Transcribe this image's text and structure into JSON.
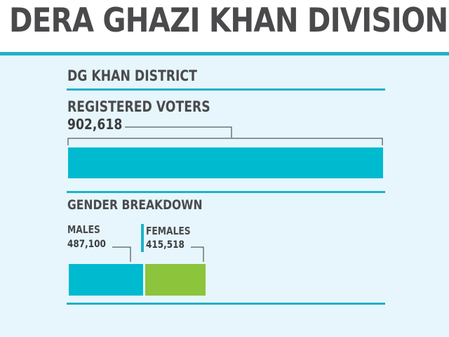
{
  "title": "DERA GHAZI KHAN DIVISION",
  "district": "DG KHAN DISTRICT",
  "registered": {
    "label": "REGISTERED VOTERS",
    "value_text": "902,618",
    "value": 902618
  },
  "gender": {
    "heading": "GENDER BREAKDOWN",
    "males": {
      "label": "MALES",
      "value_text": "487,100",
      "value": 487100
    },
    "females": {
      "label": "FEMALES",
      "value_text": "415,518",
      "value": 415518
    }
  },
  "colors": {
    "accent": "#1fb1c8",
    "registered_bar": "#00bad0",
    "males_bar": "#00bad0",
    "females_bar": "#8cc43c",
    "panel_bg": "#e6f6fc",
    "text": "#4a4a4d"
  }
}
